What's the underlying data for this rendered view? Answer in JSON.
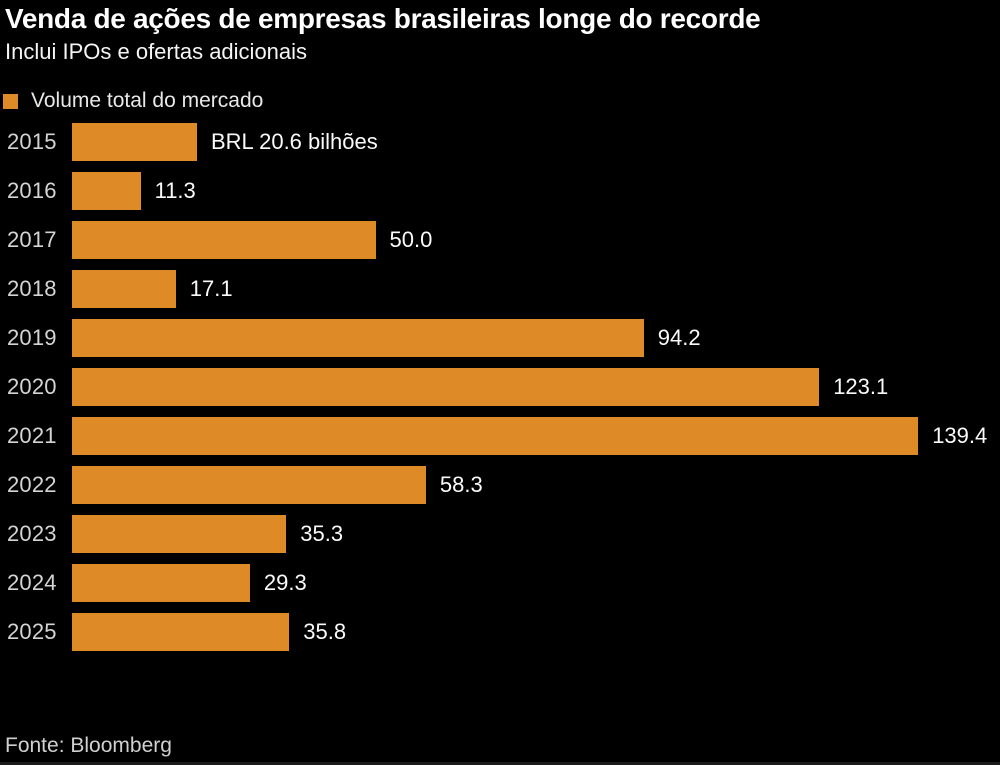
{
  "page": {
    "background": "#000000",
    "accent": "#DE8B27"
  },
  "header": {
    "title": "Venda de ações de empresas brasileiras longe do recorde",
    "subtitle": "Inclui IPOs e ofertas adicionais"
  },
  "legend": {
    "swatch_color": "#DE8B27",
    "label": "Volume total do mercado"
  },
  "footer": {
    "source": "Fonte: Bloomberg"
  },
  "chart_data": {
    "type": "bar",
    "orientation": "horizontal",
    "title": "Venda de ações de empresas brasileiras longe do recorde",
    "subtitle": "Inclui IPOs e ofertas adicionais",
    "legend": [
      "Volume total do mercado"
    ],
    "legend_position": "top-left",
    "unit": "BRL bilhões",
    "categories": [
      "2015",
      "2016",
      "2017",
      "2018",
      "2019",
      "2020",
      "2021",
      "2022",
      "2023",
      "2024",
      "2025"
    ],
    "values": [
      20.6,
      11.3,
      50.0,
      17.1,
      94.2,
      123.1,
      139.4,
      58.3,
      35.3,
      29.3,
      35.8
    ],
    "value_labels": [
      "BRL 20.6 bilhões",
      "11.3",
      "50.0",
      "17.1",
      "94.2",
      "123.1",
      "139.4",
      "58.3",
      "35.3",
      "29.3",
      "35.8"
    ],
    "xlim": [
      0,
      153
    ],
    "grid": false,
    "bar_color": "#DE8B27",
    "background_color": "#000000",
    "source": "Fonte: Bloomberg"
  }
}
